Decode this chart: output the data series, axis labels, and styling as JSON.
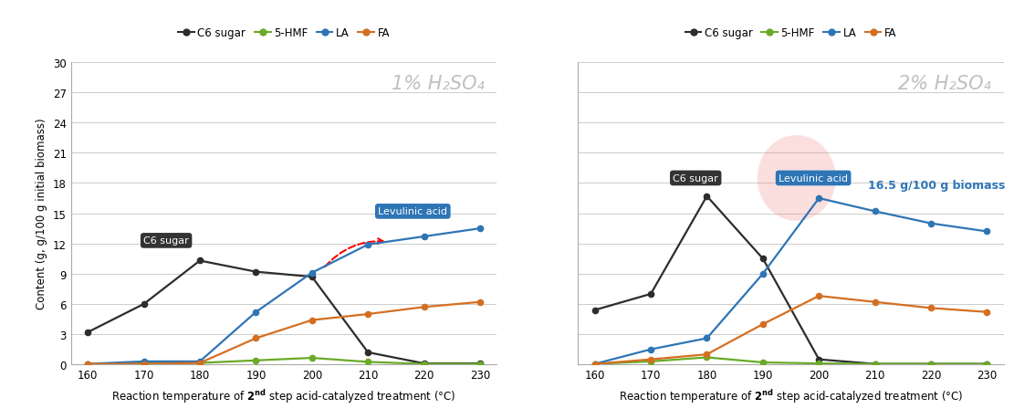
{
  "temps": [
    160,
    170,
    180,
    190,
    200,
    210,
    220,
    230
  ],
  "left": {
    "title": "1% H₂SO₄",
    "C6sugar": [
      3.2,
      6.0,
      10.3,
      9.2,
      8.7,
      1.2,
      0.1,
      0.1
    ],
    "HMF": [
      0.05,
      0.1,
      0.15,
      0.4,
      0.65,
      0.25,
      0.05,
      0.05
    ],
    "LA": [
      0.05,
      0.3,
      0.3,
      5.2,
      9.1,
      11.9,
      12.7,
      13.5
    ],
    "FA": [
      0.05,
      0.05,
      0.15,
      2.6,
      4.4,
      5.0,
      5.7,
      6.2
    ]
  },
  "right": {
    "title": "2% H₂SO₄",
    "C6sugar": [
      5.4,
      7.0,
      16.7,
      10.5,
      0.5,
      0.05,
      0.05,
      0.05
    ],
    "HMF": [
      0.05,
      0.3,
      0.7,
      0.2,
      0.1,
      0.05,
      0.05,
      0.05
    ],
    "LA": [
      0.05,
      1.5,
      2.6,
      9.0,
      16.5,
      15.2,
      14.0,
      13.2
    ],
    "FA": [
      0.05,
      0.5,
      1.0,
      4.0,
      6.8,
      6.2,
      5.6,
      5.2
    ]
  },
  "colors": {
    "C6sugar": "#2d2d2d",
    "HMF": "#6aaa27",
    "LA": "#2e75b6",
    "FA": "#d46f22"
  },
  "ylabel": "Content (g, g/100 g initial biomass)",
  "ylim": [
    0,
    30
  ],
  "yticks": [
    0,
    3,
    6,
    9,
    12,
    15,
    18,
    21,
    24,
    27,
    30
  ],
  "title_color": "#c0c0c0"
}
